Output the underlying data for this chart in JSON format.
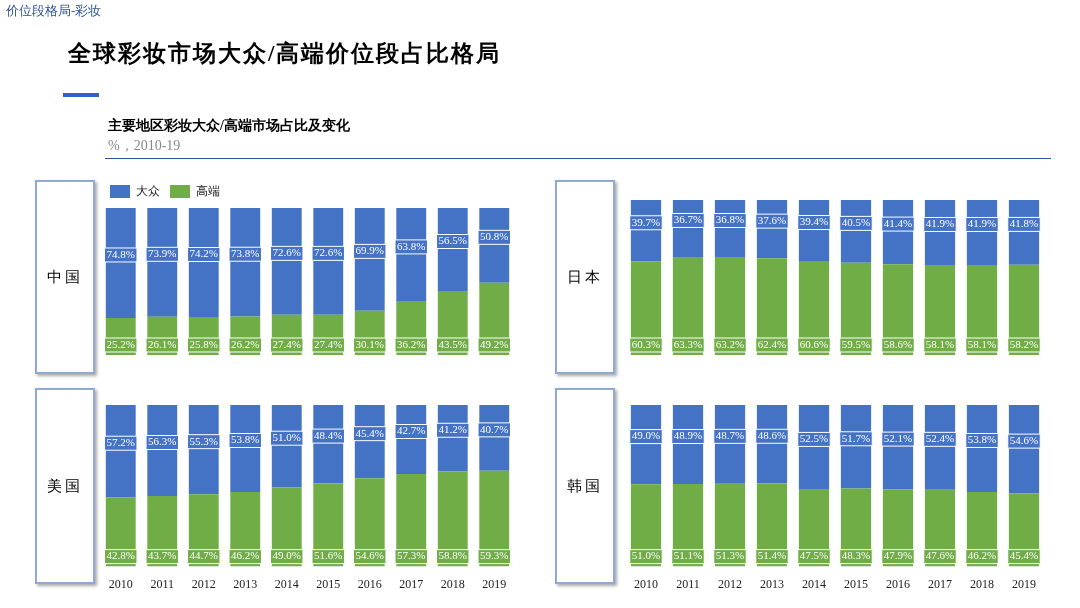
{
  "chart_data": [
    {
      "type": "bar",
      "stacked": true,
      "title": "中国",
      "legend": "top left",
      "tick_labels": false,
      "annotations": [
        "价位段格局-彩妆",
        "全球彩妆市场大众/高端价位段占比格局",
        "主要地区彩妆大众/高端市场占比及变化",
        "%，2010-19"
      ],
      "categories": [
        "2010",
        "2011",
        "2012",
        "2013",
        "2014",
        "2015",
        "2016",
        "2017",
        "2018",
        "2019"
      ],
      "series": [
        {
          "name": "高端",
          "color": "#70ad47",
          "values": [
            25.2,
            26.1,
            25.8,
            26.2,
            27.4,
            27.4,
            30.1,
            36.2,
            43.5,
            49.2
          ],
          "value_labels": [
            "25.2%",
            "26.1%",
            "25.8%",
            "26.2%",
            "27.4%",
            "27.4%",
            "30.1%",
            "36.2%",
            "43.5%",
            "49.2%"
          ]
        },
        {
          "name": "大众",
          "color": "#4472c4",
          "values": [
            74.8,
            73.9,
            74.2,
            73.8,
            72.6,
            72.6,
            69.9,
            63.8,
            56.5,
            50.8
          ],
          "value_labels": [
            "74.8%",
            "73.9%",
            "74.2%",
            "73.8%",
            "72.6%",
            "72.6%",
            "69.9%",
            "63.8%",
            "56.5%",
            "50.8%"
          ]
        }
      ]
    },
    {
      "type": "bar",
      "stacked": true,
      "title": "日本",
      "tick_labels": false,
      "categories": [
        "2010",
        "2011",
        "2012",
        "2013",
        "2014",
        "2015",
        "2016",
        "2017",
        "2018",
        "2019"
      ],
      "series": [
        {
          "color": "#70ad47",
          "values": [
            60.3,
            63.3,
            63.2,
            62.4,
            60.6,
            59.5,
            58.6,
            58.1,
            58.1,
            58.2
          ],
          "value_labels": [
            "60.3%",
            "63.3%",
            "63.2%",
            "62.4%",
            "60.6%",
            "59.5%",
            "58.6%",
            "58.1%",
            "58.1%",
            "58.2%"
          ]
        },
        {
          "color": "#4472c4",
          "values": [
            39.7,
            36.7,
            36.8,
            37.6,
            39.4,
            40.5,
            41.4,
            41.9,
            41.9,
            41.8
          ],
          "value_labels": [
            "39.7%",
            "36.7%",
            "36.8%",
            "37.6%",
            "39.4%",
            "40.5%",
            "41.4%",
            "41.9%",
            "41.9%",
            "41.8%"
          ]
        }
      ]
    },
    {
      "type": "bar",
      "stacked": true,
      "title": "美国",
      "tick_labels": "x",
      "categories": [
        "2010",
        "2011",
        "2012",
        "2013",
        "2014",
        "2015",
        "2016",
        "2017",
        "2018",
        "2019"
      ],
      "series": [
        {
          "color": "#70ad47",
          "values": [
            42.8,
            43.7,
            44.7,
            46.2,
            49.0,
            51.6,
            54.6,
            57.3,
            58.8,
            59.3
          ],
          "value_labels": [
            "42.8%",
            "43.7%",
            "44.7%",
            "46.2%",
            "49.0%",
            "51.6%",
            "54.6%",
            "57.3%",
            "58.8%",
            "59.3%"
          ]
        },
        {
          "color": "#4472c4",
          "values": [
            57.2,
            56.3,
            55.3,
            53.8,
            51.0,
            48.4,
            45.4,
            42.7,
            41.2,
            40.7
          ],
          "value_labels": [
            "57.2%",
            "56.3%",
            "55.3%",
            "53.8%",
            "51.0%",
            "48.4%",
            "45.4%",
            "42.7%",
            "41.2%",
            "40.7%"
          ]
        }
      ]
    },
    {
      "type": "bar",
      "stacked": true,
      "title": "韩国",
      "tick_labels": "x",
      "categories": [
        "2010",
        "2011",
        "2012",
        "2013",
        "2014",
        "2015",
        "2016",
        "2017",
        "2018",
        "2019"
      ],
      "series": [
        {
          "color": "#70ad47",
          "values": [
            51.0,
            51.1,
            51.3,
            51.4,
            47.5,
            48.3,
            47.9,
            47.6,
            46.2,
            45.4
          ],
          "value_labels": [
            "51.0%",
            "51.1%",
            "51.3%",
            "51.4%",
            "47.5%",
            "48.3%",
            "47.9%",
            "47.6%",
            "46.2%",
            "45.4%"
          ]
        },
        {
          "color": "#4472c4",
          "values": [
            49.0,
            48.9,
            48.7,
            48.6,
            52.5,
            51.7,
            52.1,
            52.4,
            53.8,
            54.6
          ],
          "value_labels": [
            "49.0%",
            "48.9%",
            "48.7%",
            "48.6%",
            "52.5%",
            "51.7%",
            "52.1%",
            "52.4%",
            "53.8%",
            "54.6%"
          ]
        }
      ]
    }
  ]
}
